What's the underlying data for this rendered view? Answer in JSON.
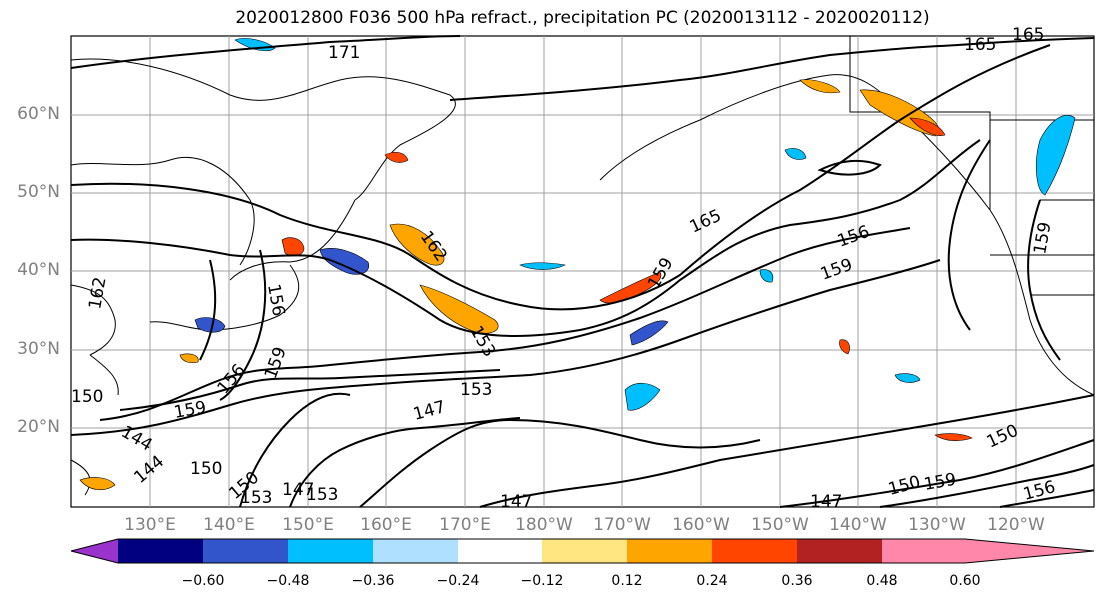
{
  "title": "2020012800 F036 500 hPa refract., precipitation PC (2020013112 - 2020020112)",
  "lat_labels": [
    "60°N",
    "50°N",
    "40°N",
    "30°N",
    "20°N"
  ],
  "lon_labels": [
    "130°E",
    "140°E",
    "150°E",
    "160°E",
    "170°E",
    "180°W",
    "170°W",
    "160°W",
    "150°W",
    "140°W",
    "130°W",
    "120°W"
  ],
  "contour_labels": [
    "171",
    "165",
    "165",
    "156",
    "159",
    "159",
    "156",
    "153",
    "147",
    "159",
    "150",
    "150",
    "147",
    "153",
    "147",
    "144",
    "150",
    "159",
    "156",
    "159",
    "162",
    "162",
    "153",
    "159",
    "156",
    "144",
    "150",
    "165",
    "147",
    "150",
    "153"
  ],
  "colorbar": {
    "colors": [
      "#9933cc",
      "#000080",
      "#3355cc",
      "#00bfff",
      "#b0e0ff",
      "#ffffff",
      "#ffe680",
      "#ffa500",
      "#ff4500",
      "#b22222",
      "#ff88aa"
    ],
    "ticks": [
      "−0.60",
      "−0.48",
      "−0.36",
      "−0.24",
      "−0.12",
      "0.12",
      "0.24",
      "0.36",
      "0.48",
      "0.60"
    ]
  }
}
